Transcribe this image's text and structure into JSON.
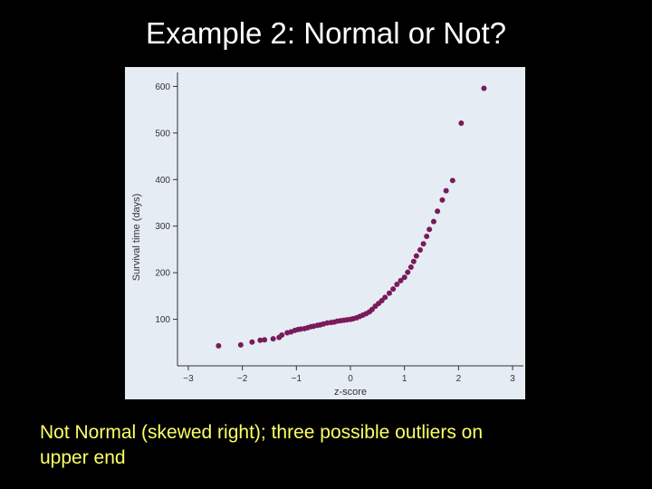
{
  "slide": {
    "title": "Example 2:  Normal or Not?",
    "caption_line1": "Not Normal (skewed right); three possible outliers on",
    "caption_line2": "upper end"
  },
  "colors": {
    "background": "#000000",
    "title": "#ffffff",
    "caption": "#ffff66",
    "panel": "#e5ecf3",
    "point": "#7a1a5a",
    "axis": "#333333"
  },
  "chart_data": {
    "type": "scatter",
    "title": "",
    "xlabel": "z-score",
    "ylabel": "Survival time (days)",
    "xlim": [
      -3.2,
      3.2
    ],
    "ylim": [
      0,
      630
    ],
    "x_ticks": [
      -3,
      -2,
      -1,
      0,
      1,
      2,
      3
    ],
    "y_ticks": [
      100,
      200,
      300,
      400,
      500,
      600
    ],
    "grid": false,
    "series": [
      {
        "x": [
          -2.44,
          -2.03,
          -1.82,
          -1.67,
          -1.59,
          -1.43,
          -1.32,
          -1.27,
          -1.17,
          -1.1,
          -1.03,
          -0.97,
          -0.92,
          -0.85,
          -0.79,
          -0.73,
          -0.68,
          -0.61,
          -0.56,
          -0.5,
          -0.43,
          -0.36,
          -0.3,
          -0.24,
          -0.18,
          -0.12,
          -0.06,
          0.0,
          0.05,
          0.11,
          0.17,
          0.23,
          0.29,
          0.35,
          0.4,
          0.46,
          0.52,
          0.58,
          0.64,
          0.72,
          0.79,
          0.86,
          0.93,
          1.0,
          1.06,
          1.12,
          1.17,
          1.22,
          1.29,
          1.35,
          1.41,
          1.46,
          1.54,
          1.61,
          1.7,
          1.77,
          1.89,
          2.05,
          2.47
        ],
        "y": [
          43,
          45,
          51,
          55,
          56,
          58,
          61,
          66,
          71,
          73,
          76,
          78,
          79,
          80,
          82,
          84,
          85,
          87,
          88,
          90,
          92,
          93,
          94,
          96,
          97,
          98,
          99,
          100,
          101,
          103,
          106,
          109,
          112,
          116,
          121,
          128,
          134,
          140,
          147,
          156,
          165,
          175,
          183,
          190,
          201,
          212,
          224,
          236,
          249,
          262,
          278,
          293,
          310,
          332,
          356,
          376,
          398,
          521,
          596
        ]
      }
    ]
  }
}
